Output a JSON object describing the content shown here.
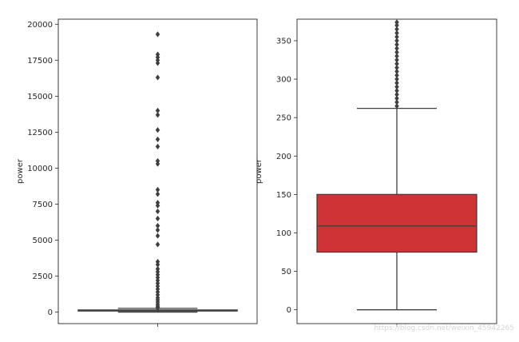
{
  "chart_data": [
    {
      "type": "box",
      "title": "",
      "xlabel": "",
      "ylabel": "power",
      "ylim": [
        -800,
        20350
      ],
      "yticks": [
        0,
        2500,
        5000,
        7500,
        10000,
        12500,
        15000,
        17500,
        20000
      ],
      "box_color": "#3274a1",
      "box": {
        "whisker_low": 0,
        "q1": 75,
        "median": 109,
        "q3": 150,
        "whisker_high": 262
      },
      "outliers": [
        19300,
        17900,
        17700,
        17500,
        17300,
        16300,
        14000,
        13700,
        12650,
        12000,
        11500,
        10500,
        10300,
        8500,
        8200,
        7600,
        7400,
        7000,
        6500,
        6000,
        5700,
        5300,
        4700,
        3500,
        3300,
        3000,
        2800,
        2600,
        2400,
        2200,
        2000,
        1800,
        1600,
        1400,
        1200,
        1000,
        850,
        700,
        550,
        420,
        330,
        280
      ]
    },
    {
      "type": "box",
      "title": "",
      "xlabel": "",
      "ylabel": "power",
      "ylim": [
        -18,
        378
      ],
      "yticks": [
        0,
        50,
        100,
        150,
        200,
        250,
        300,
        350
      ],
      "box_color": "#d03336",
      "box": {
        "whisker_low": 0,
        "q1": 75,
        "median": 109,
        "q3": 150,
        "whisker_high": 262
      },
      "outliers": [
        265,
        270,
        275,
        280,
        285,
        290,
        295,
        300,
        305,
        310,
        315,
        320,
        325,
        330,
        335,
        340,
        345,
        350,
        355,
        360,
        365,
        370,
        374
      ]
    }
  ],
  "watermark": "https://blog.csdn.net/weixin_45942265"
}
